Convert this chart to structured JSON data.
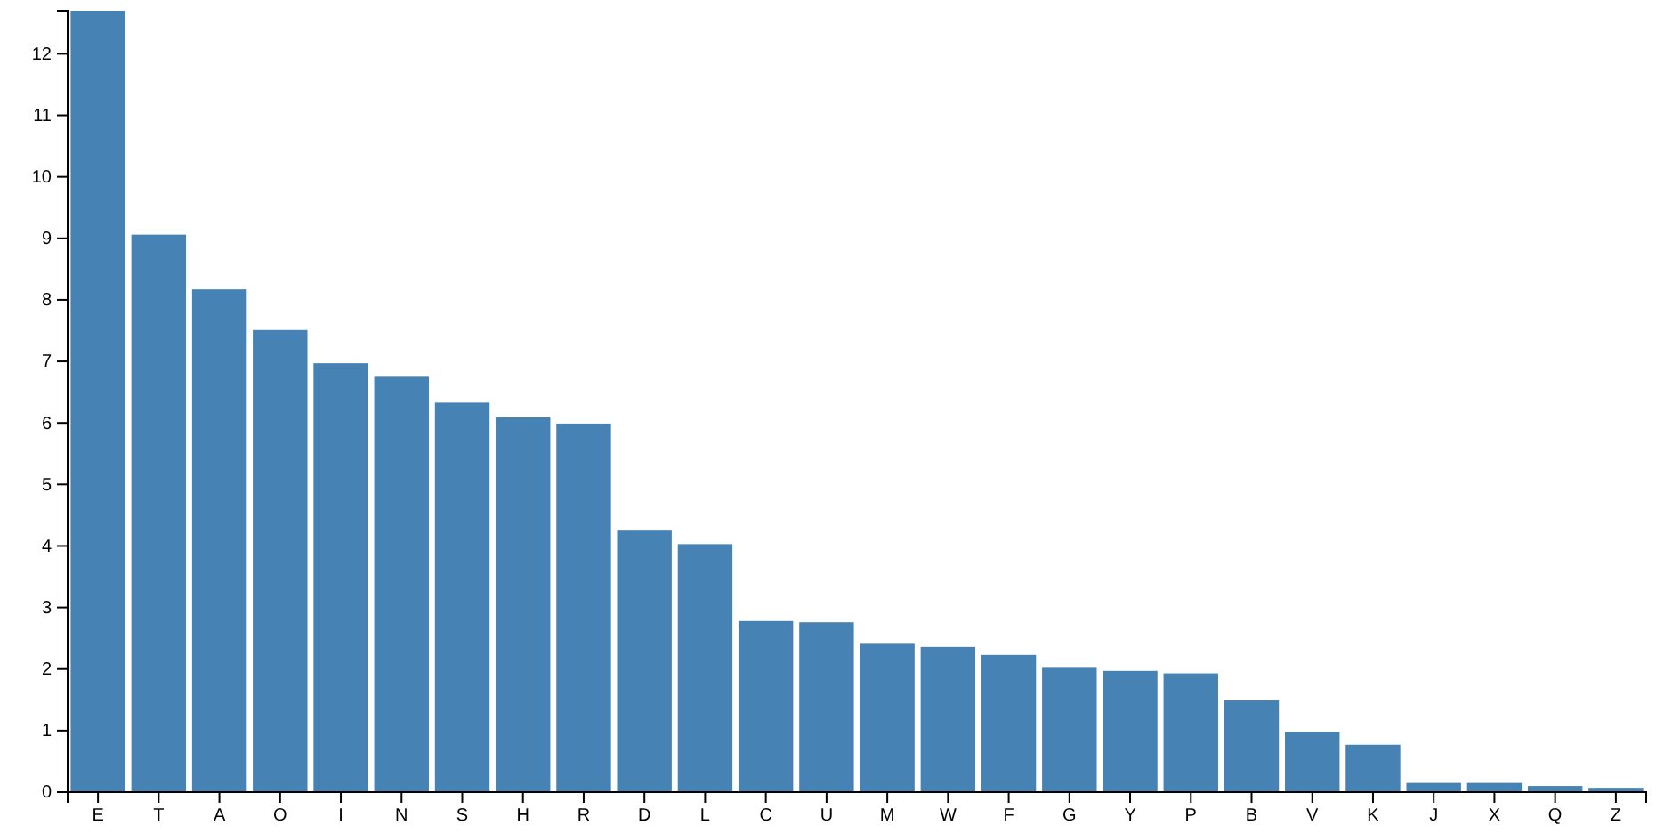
{
  "chart_data": {
    "type": "bar",
    "categories": [
      "E",
      "T",
      "A",
      "O",
      "I",
      "N",
      "S",
      "H",
      "R",
      "D",
      "L",
      "C",
      "U",
      "M",
      "W",
      "F",
      "G",
      "Y",
      "P",
      "B",
      "V",
      "K",
      "J",
      "X",
      "Q",
      "Z"
    ],
    "values": [
      12.7,
      9.06,
      8.17,
      7.51,
      6.97,
      6.75,
      6.33,
      6.09,
      5.99,
      4.25,
      4.03,
      2.78,
      2.76,
      2.41,
      2.36,
      2.23,
      2.02,
      1.97,
      1.93,
      1.49,
      0.98,
      0.77,
      0.15,
      0.15,
      0.1,
      0.07
    ],
    "color": "#4682b4",
    "ylim": [
      0,
      12.7
    ],
    "yticks": [
      0,
      1,
      2,
      3,
      4,
      5,
      6,
      7,
      8,
      9,
      10,
      11,
      12
    ],
    "grid": false
  }
}
